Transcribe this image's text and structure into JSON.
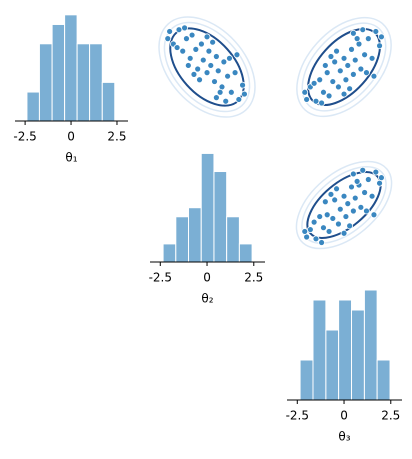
{
  "chart_data": [
    {
      "type": "histogram",
      "xlabel": "θ₁",
      "bins": [
        -2.4,
        -1.72,
        -1.03,
        -0.35,
        0.33,
        1.01,
        1.7,
        2.38
      ],
      "values": [
        3,
        8,
        10,
        11,
        8,
        8,
        4
      ],
      "color": "#7bafd4",
      "xlim": [
        -3.05,
        3.1
      ],
      "xticks": [
        -2.5,
        0,
        2.5
      ],
      "ylim": [
        0,
        11.5
      ]
    },
    {
      "type": "scatter",
      "xlim": [
        -3.05,
        3.1
      ],
      "ylim": [
        -3.05,
        3.1
      ],
      "color": "#3a87c0",
      "x": [
        -2.0,
        -1.8,
        -1.5,
        -1.3,
        -1.1,
        -0.9,
        -0.8,
        -0.6,
        -0.5,
        -0.3,
        -0.2,
        0,
        0.1,
        0.2,
        0.4,
        0.5,
        0.6,
        0.8,
        0.9,
        1.1,
        1.3,
        1.5,
        1.7,
        1.9,
        -1.6,
        -1.0,
        -0.4,
        0.3,
        0.7,
        1.2,
        -0.7,
        0,
        1.0,
        -1.2,
        0.5,
        1.6,
        -2.1,
        2.0
      ],
      "values": [
        1.9,
        1.2,
        2.0,
        0.8,
        1.5,
        0.4,
        1.7,
        0.9,
        -0.2,
        1.2,
        0.3,
        -0.4,
        0.8,
        0,
        -0.9,
        0.5,
        -0.3,
        -1.2,
        0.2,
        -0.6,
        -1.5,
        -0.4,
        -1.9,
        -1.1,
        1.0,
        0,
        -0.8,
        1.3,
        -1.5,
        0.4,
        -0.5,
        1.6,
        -2.0,
        2.1,
        -1.8,
        0.6,
        1.5,
        -1.6
      ]
    },
    {
      "type": "scatter",
      "xlim": [
        -3.05,
        3.1
      ],
      "ylim": [
        -3.05,
        3.1
      ],
      "color": "#3a87c0",
      "x": [
        -2.0,
        -1.8,
        -1.5,
        -1.3,
        -1.1,
        -0.9,
        -0.8,
        -0.6,
        -0.5,
        -0.3,
        -0.2,
        0,
        0.1,
        0.2,
        0.4,
        0.5,
        0.6,
        0.8,
        0.9,
        1.1,
        1.3,
        1.5,
        1.7,
        1.9,
        -1.6,
        -1.0,
        -0.4,
        0.3,
        0.7,
        1.2,
        -0.7,
        0,
        1.0,
        -1.2,
        0.5,
        1.6,
        -2.1,
        2.0
      ],
      "values": [
        -1.9,
        -1.2,
        -2.0,
        -0.8,
        -1.5,
        -0.4,
        -1.7,
        -0.9,
        0.2,
        -1.2,
        -0.3,
        0.4,
        -0.8,
        0,
        0.9,
        -0.5,
        0.3,
        1.2,
        -0.2,
        0.6,
        1.5,
        0.4,
        1.9,
        1.1,
        -1.0,
        0,
        0.8,
        -1.3,
        1.5,
        -0.4,
        0.5,
        -1.6,
        2.0,
        -2.1,
        1.8,
        -0.6,
        -1.5,
        1.6
      ]
    },
    {
      "type": "histogram",
      "xlabel": "θ₂",
      "bins": [
        -2.35,
        -1.67,
        -0.99,
        -0.31,
        0.37,
        1.05,
        1.73,
        2.41
      ],
      "values": [
        2,
        5,
        6,
        12,
        10,
        5,
        2
      ],
      "color": "#7bafd4",
      "xlim": [
        -3.05,
        3.1
      ],
      "xticks": [
        -2.5,
        0,
        2.5
      ],
      "ylim": [
        0,
        12.6
      ]
    },
    {
      "type": "scatter",
      "xlim": [
        -3.05,
        3.1
      ],
      "ylim": [
        -3.05,
        3.1
      ],
      "color": "#3a87c0",
      "x": [
        -2.0,
        -1.8,
        -1.5,
        -1.3,
        -1.1,
        -0.9,
        -0.8,
        -0.6,
        -0.5,
        -0.3,
        -0.2,
        0,
        0.1,
        0.2,
        0.4,
        0.5,
        0.6,
        0.8,
        0.9,
        1.1,
        1.3,
        1.5,
        1.7,
        1.9,
        -1.6,
        -1.0,
        -0.4,
        0.3,
        0.7,
        1.2,
        -0.7,
        0,
        1.0,
        -1.2,
        0.5,
        1.6,
        -2.1,
        2.0
      ],
      "values": [
        -1.7,
        -1.3,
        -1.8,
        -0.6,
        -1.2,
        -0.5,
        -1.4,
        -0.7,
        0.3,
        -1.0,
        -0.2,
        0.5,
        -0.6,
        0.1,
        1.0,
        -0.3,
        0.4,
        1.1,
        -0.1,
        0.7,
        1.4,
        0.5,
        1.8,
        1.2,
        -0.9,
        0.2,
        0.9,
        -1.1,
        1.3,
        -0.3,
        0.6,
        -1.5,
        1.9,
        -2.0,
        1.7,
        -0.5,
        -1.4,
        1.5
      ]
    },
    {
      "type": "histogram",
      "xlabel": "θ₃",
      "bins": [
        -2.35,
        -1.66,
        -0.97,
        -0.29,
        0.4,
        1.09,
        1.77,
        2.46
      ],
      "values": [
        4,
        10,
        7,
        10,
        9,
        11,
        4
      ],
      "color": "#7bafd4",
      "xlim": [
        -3.05,
        3.1
      ],
      "xticks": [
        -2.5,
        0,
        2.5
      ],
      "ylim": [
        0,
        11
      ]
    }
  ]
}
